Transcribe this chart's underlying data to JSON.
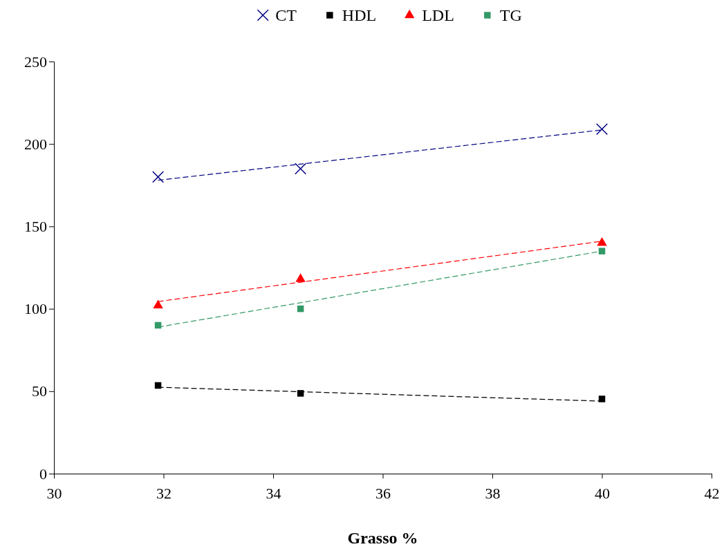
{
  "chart_data": {
    "type": "scatter",
    "xlabel": "Grasso %",
    "xlim": [
      30,
      42
    ],
    "xticks": [
      30,
      32,
      34,
      36,
      38,
      40,
      42
    ],
    "ylim": [
      0,
      250
    ],
    "yticks": [
      0,
      50,
      100,
      150,
      200,
      250
    ],
    "grid": false,
    "legend": "top",
    "series": [
      {
        "name": "CT",
        "color": "#000080",
        "marker": "cross",
        "x": [
          31.9,
          34.5,
          40.0
        ],
        "values": [
          180,
          185,
          209
        ]
      },
      {
        "name": "HDL",
        "color": "#000000",
        "marker": "square",
        "x": [
          31.9,
          34.5,
          40.0
        ],
        "values": [
          53.5,
          48.7,
          45.3
        ]
      },
      {
        "name": "LDL",
        "color": "#ff0000",
        "marker": "triangle",
        "x": [
          31.9,
          34.5,
          40.0
        ],
        "values": [
          102,
          118,
          140
        ]
      },
      {
        "name": "TG",
        "color": "#339966",
        "marker": "square",
        "x": [
          31.9,
          34.5,
          40.0
        ],
        "values": [
          90,
          100,
          135
        ]
      },
      {
        "type": "line",
        "color": "#000080",
        "line_style": "dashed",
        "x": [
          31.9,
          40.0
        ],
        "values": [
          178,
          208.5
        ]
      },
      {
        "type": "line",
        "color": "#000000",
        "line_style": "dashed",
        "x": [
          31.9,
          40.0
        ],
        "values": [
          52.4,
          44
        ]
      },
      {
        "type": "line",
        "color": "#ff0000",
        "line_style": "dashed",
        "x": [
          31.9,
          40.0
        ],
        "values": [
          104.4,
          141
        ]
      },
      {
        "type": "line",
        "color": "#339966",
        "line_style": "dashed",
        "x": [
          31.9,
          40.0
        ],
        "values": [
          88.9,
          135
        ]
      }
    ]
  }
}
